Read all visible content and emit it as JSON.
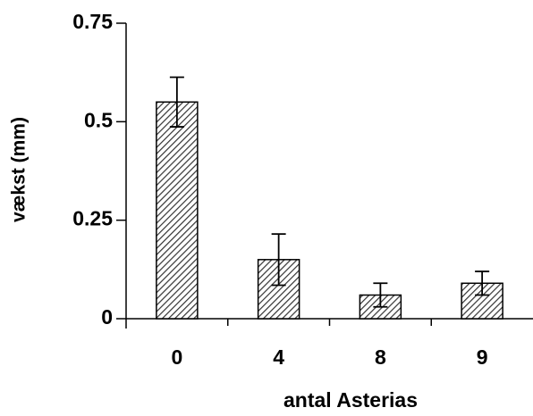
{
  "chart_data": {
    "type": "bar",
    "x_label": "antal Asterias",
    "y_label": "vækst (mm)",
    "categories": [
      "0",
      "4",
      "8",
      "9"
    ],
    "values": [
      0.55,
      0.15,
      0.06,
      0.09
    ],
    "errors": [
      0.063,
      0.065,
      0.03,
      0.03
    ],
    "color": "#333333",
    "ylim": [
      0,
      0.75
    ],
    "yticks": [
      0,
      0.25,
      0.5,
      0.75
    ],
    "grid": false
  }
}
